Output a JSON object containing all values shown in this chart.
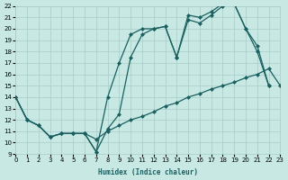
{
  "xlabel": "Humidex (Indice chaleur)",
  "bg_color": "#c8e8e4",
  "grid_color": "#a8ccc8",
  "line_color": "#1a6060",
  "xlim": [
    0,
    23
  ],
  "ylim": [
    9,
    22
  ],
  "xticks": [
    0,
    1,
    2,
    3,
    4,
    5,
    6,
    7,
    8,
    9,
    10,
    11,
    12,
    13,
    14,
    15,
    16,
    17,
    18,
    19,
    20,
    21,
    22,
    23
  ],
  "yticks": [
    9,
    10,
    11,
    12,
    13,
    14,
    15,
    16,
    17,
    18,
    19,
    20,
    21,
    22
  ],
  "line_min_x": [
    0,
    1,
    2,
    3,
    4,
    5,
    6,
    7,
    8,
    9,
    10,
    11,
    12,
    13,
    14,
    15,
    16,
    17,
    18,
    19,
    20,
    21,
    22,
    23
  ],
  "line_min_y": [
    14,
    12,
    11.5,
    10.5,
    10.8,
    10.8,
    10.8,
    10.3,
    11.0,
    11.5,
    12.0,
    12.3,
    12.7,
    13.2,
    13.5,
    14.0,
    14.3,
    14.7,
    15.0,
    15.3,
    15.7,
    16.0,
    16.5,
    15.0
  ],
  "line_upper_x": [
    0,
    1,
    2,
    3,
    4,
    5,
    6,
    7,
    8,
    9,
    10,
    11,
    12,
    13,
    14,
    15,
    16,
    17,
    18,
    19,
    20,
    21,
    22
  ],
  "line_upper_y": [
    14,
    12,
    11.5,
    10.5,
    10.8,
    10.8,
    10.8,
    9.2,
    14.0,
    17.0,
    19.5,
    20.0,
    20.0,
    20.2,
    17.5,
    21.2,
    21.0,
    21.5,
    22.2,
    22.2,
    20.0,
    18.5,
    15.0
  ],
  "line_mid_x": [
    0,
    1,
    2,
    3,
    4,
    5,
    6,
    7,
    8,
    9,
    10,
    11,
    12,
    13,
    14,
    15,
    16,
    17,
    18,
    19,
    20,
    21,
    22
  ],
  "line_mid_y": [
    14,
    12,
    11.5,
    10.5,
    10.8,
    10.8,
    10.8,
    9.2,
    11.2,
    12.5,
    17.5,
    19.5,
    20.0,
    20.2,
    17.5,
    20.8,
    20.5,
    21.2,
    22.0,
    22.2,
    20.0,
    18.0,
    15.0
  ],
  "markersize": 2.5,
  "linewidth": 0.9
}
